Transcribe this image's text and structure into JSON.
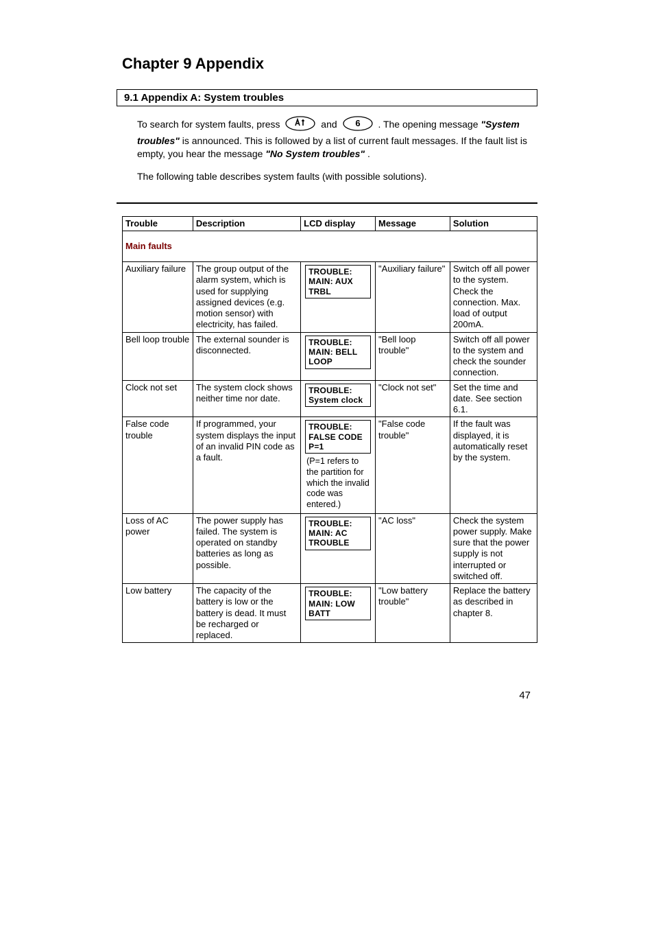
{
  "chapter": {
    "title": "Chapter 9 Appendix"
  },
  "section": {
    "heading": "9.1 Appendix A: System troubles"
  },
  "intro": {
    "p1_a": "To search for system faults, press ",
    "p1_b": " and ",
    "p1_c": " . The opening message ",
    "p1_d": "\"System troubles\"",
    "p1_e": " is announced. This is followed by a list of current fault messages. If the fault list is empty, you hear the message ",
    "p1_f": "\"No System troubles\"",
    "p1_g": ".",
    "p2": "The following table describes system faults (with possible solutions)."
  },
  "icons": {
    "icon1_alt": "star-key-icon",
    "icon2_alt": "six-key-icon"
  },
  "table": {
    "headers": {
      "trouble": "Trouble",
      "description": "Description",
      "lcd": "LCD display",
      "message": "Message",
      "solution": "Solution"
    },
    "section_label": "Main faults",
    "rows": [
      {
        "trouble": "Auxiliary failure",
        "description": "The group output of the alarm system, which is used for supplying assigned devices (e.g. motion sensor) with electricity, has failed.",
        "lcd_line1": "TROUBLE:",
        "lcd_line2": "MAIN: AUX TRBL",
        "lcd_note": "",
        "message": "\"Auxiliary failure\"",
        "solution": "Switch off all power to the system. Check the connection. Max. load of output 200mA."
      },
      {
        "trouble": "Bell loop trouble",
        "description": "The external sounder is disconnected.",
        "lcd_line1": "TROUBLE:",
        "lcd_line2": "MAIN: BELL LOOP",
        "lcd_note": "",
        "message": "\"Bell loop trouble\"",
        "solution": "Switch off all power to the system and check the sounder connection."
      },
      {
        "trouble": "Clock not set",
        "description": "The system clock shows neither time nor date.",
        "lcd_line1": "TROUBLE:",
        "lcd_line2": "System clock",
        "lcd_note": "",
        "message": "\"Clock not set\"",
        "solution": "Set the time and date. See section 6.1."
      },
      {
        "trouble": "False code trouble",
        "description": "If programmed, your system displays the input of an invalid PIN code as a fault.",
        "lcd_line1": "TROUBLE:",
        "lcd_line2": "FALSE CODE P=1",
        "lcd_note": "(P=1 refers to the partition for which the invalid code was entered.)",
        "message": "\"False code trouble\"",
        "solution": "If the fault was displayed, it is automatically reset by the system."
      },
      {
        "trouble": "Loss of AC power",
        "description": "The power supply has failed. The system is operated on standby batteries as long as possible.",
        "lcd_line1": "TROUBLE:",
        "lcd_line2": "MAIN: AC TROUBLE",
        "lcd_note": "",
        "message": "\"AC loss\"",
        "solution": "Check the system power supply. Make sure that the power supply is not interrupted or switched off."
      },
      {
        "trouble": "Low battery",
        "description": "The capacity of the battery is low or the battery is dead. It must be recharged or replaced.",
        "lcd_line1": "TROUBLE:",
        "lcd_line2": "MAIN: LOW BATT",
        "lcd_note": "",
        "message": "\"Low battery trouble\"",
        "solution": "Replace the battery as described in chapter 8."
      }
    ]
  },
  "page_number": "47",
  "colors": {
    "section_header_text": "#7a0000",
    "text": "#000000",
    "background": "#ffffff"
  }
}
